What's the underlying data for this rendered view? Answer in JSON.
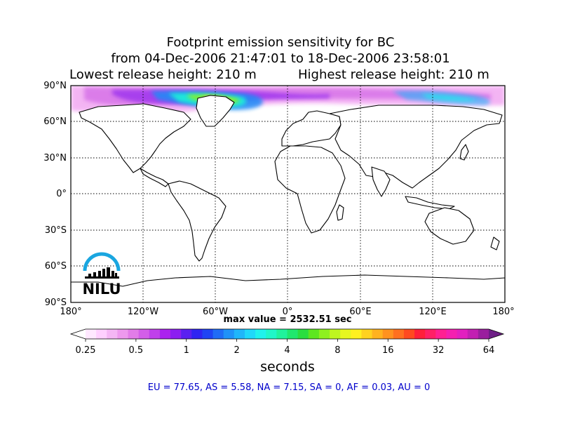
{
  "title": {
    "line1": "Footprint emission sensitivity for BC",
    "line2": "from 04-Dec-2006 21:47:01 to 18-Dec-2006 23:58:01",
    "lowest": "Lowest release height: 210 m",
    "highest": "Highest release height: 210 m"
  },
  "map": {
    "projection": "equirectangular",
    "lat_ticks": [
      "90°N",
      "60°N",
      "30°N",
      "0°",
      "30°S",
      "60°S",
      "90°S"
    ],
    "lon_ticks": [
      "180°",
      "120°W",
      "60°W",
      "0°",
      "60°E",
      "120°E",
      "180°"
    ],
    "coastline_color": "#000000",
    "gridline_style": "dotted"
  },
  "logo": {
    "text": "NILU",
    "arc_color": "#1aa6e0"
  },
  "max_value_label": "max value = 2532.51 sec",
  "colorbar": {
    "ticks": [
      "0.25",
      "0.5",
      "1",
      "2",
      "4",
      "8",
      "16",
      "32",
      "64"
    ],
    "units": "seconds",
    "colors": [
      "#ffffff",
      "#ffe8ff",
      "#ffd0ff",
      "#f5b6f5",
      "#ee99ee",
      "#e27ce8",
      "#d35ee8",
      "#c040ea",
      "#ab22ee",
      "#8c1ff0",
      "#5a20f0",
      "#2f24f2",
      "#1f44f4",
      "#1f6cf6",
      "#1f92f8",
      "#1fb6fa",
      "#1fd8fa",
      "#1ff2ec",
      "#1ff6c8",
      "#1ff29c",
      "#1fe86e",
      "#2ade3f",
      "#5de61f",
      "#8ef01f",
      "#bef51f",
      "#e6f71f",
      "#fff01f",
      "#ffd21f",
      "#ffb21f",
      "#ff921f",
      "#ff701f",
      "#ff4a1f",
      "#ff1f3a",
      "#ff1f66",
      "#ff1f92",
      "#f41fb0",
      "#e21fbf",
      "#c21fb2",
      "#9a1f9e",
      "#6e1f86"
    ]
  },
  "regions": "EU = 77.65,  AS = 5.58,  NA = 7.15,  SA = 0,  AF = 0.03,  AU = 0"
}
